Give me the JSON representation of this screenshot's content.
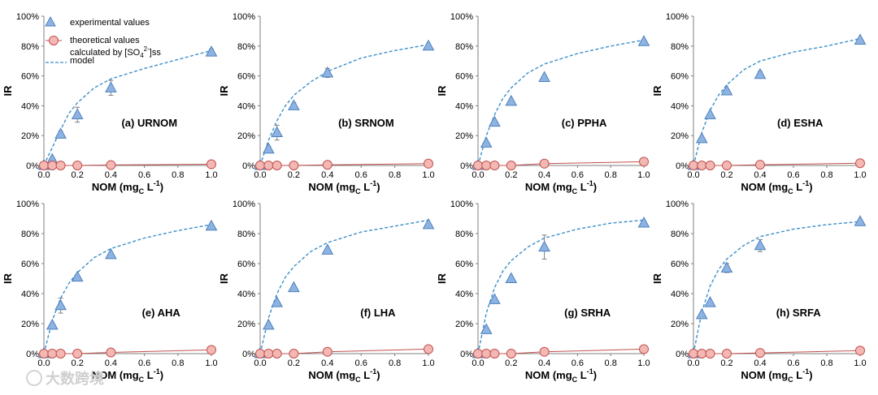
{
  "colors": {
    "triangle_fill": "#8db3e2",
    "triangle_stroke": "#4f81bd",
    "circle_fill": "#f4b8b4",
    "circle_stroke": "#c0504d",
    "model_line": "#3b8fc8",
    "theory_line": "#c0504d",
    "axis": "#7f7f7f",
    "errorbar": "#7f7f7f"
  },
  "legend": {
    "experimental": "experimental values",
    "theoretical_line1": "theoretical values",
    "theoretical_line2": "calculated by [SO",
    "theoretical_sub": "4",
    "theoretical_sup": "2-",
    "theoretical_end": "]ss",
    "model": "model"
  },
  "watermark": "大数跨境",
  "chart_data": [
    {
      "type": "scatter",
      "panel": "(a) URNOM",
      "ylabel": "IR",
      "xlabel": "NOM (mg",
      "xlabel_sub": "C",
      "xlabel_end": " L",
      "xlabel_sup": "-1",
      "xlabel_close": ")",
      "xlim": [
        0,
        1.0
      ],
      "ylim": [
        0,
        100
      ],
      "xticks": [
        "0.0",
        "0.2",
        "0.4",
        "0.6",
        "0.8",
        "1.0"
      ],
      "yticks": [
        "0%",
        "20%",
        "40%",
        "60%",
        "80%",
        "100%"
      ],
      "experimental": {
        "x": [
          0,
          0.05,
          0.1,
          0.2,
          0.4,
          1.0
        ],
        "y": [
          0,
          4,
          21,
          34,
          52,
          76
        ],
        "err": [
          0,
          0,
          2,
          5,
          5,
          2
        ]
      },
      "theoretical": {
        "x": [
          0,
          0.05,
          0.1,
          0.2,
          0.4,
          1.0
        ],
        "y": [
          0,
          0,
          0,
          0,
          0.3,
          0.8
        ]
      },
      "model": {
        "x": [
          0,
          0.05,
          0.1,
          0.15,
          0.2,
          0.3,
          0.4,
          0.6,
          0.8,
          1.0
        ],
        "y": [
          0,
          12,
          24,
          35,
          42,
          52,
          58,
          65,
          71,
          77
        ]
      }
    },
    {
      "type": "scatter",
      "panel": "(b) SRNOM",
      "ylabel": "IR",
      "xlabel": "NOM (mg",
      "xlabel_sub": "C",
      "xlabel_end": " L",
      "xlabel_sup": "-1",
      "xlabel_close": ")",
      "xlim": [
        0,
        1.0
      ],
      "ylim": [
        0,
        100
      ],
      "xticks": [
        "0.0",
        "0.2",
        "0.4",
        "0.6",
        "0.8",
        "1.0"
      ],
      "yticks": [
        "0%",
        "20%",
        "40%",
        "60%",
        "80%",
        "100%"
      ],
      "experimental": {
        "x": [
          0,
          0.05,
          0.1,
          0.2,
          0.4,
          1.0
        ],
        "y": [
          0,
          11,
          22,
          40,
          62,
          80
        ],
        "err": [
          0,
          2,
          5,
          2,
          3,
          1
        ]
      },
      "theoretical": {
        "x": [
          0,
          0.05,
          0.1,
          0.2,
          0.4,
          1.0
        ],
        "y": [
          0,
          0,
          0,
          0,
          0.4,
          1.2
        ]
      },
      "model": {
        "x": [
          0,
          0.05,
          0.1,
          0.15,
          0.2,
          0.3,
          0.4,
          0.6,
          0.8,
          1.0
        ],
        "y": [
          0,
          17,
          30,
          40,
          47,
          56,
          63,
          72,
          77,
          81
        ]
      }
    },
    {
      "type": "scatter",
      "panel": "(c) PPHA",
      "ylabel": "IR",
      "xlabel": "NOM (mg",
      "xlabel_sub": "C",
      "xlabel_end": " L",
      "xlabel_sup": "-1",
      "xlabel_close": ")",
      "xlim": [
        0,
        1.0
      ],
      "ylim": [
        0,
        100
      ],
      "xticks": [
        "0.0",
        "0.2",
        "0.4",
        "0.6",
        "0.8",
        "1.0"
      ],
      "yticks": [
        "0%",
        "20%",
        "40%",
        "60%",
        "80%",
        "100%"
      ],
      "experimental": {
        "x": [
          0,
          0.05,
          0.1,
          0.2,
          0.4,
          1.0
        ],
        "y": [
          0,
          15,
          29,
          43,
          59,
          83
        ],
        "err": [
          0,
          0,
          0,
          0,
          0,
          0
        ]
      },
      "theoretical": {
        "x": [
          0,
          0.05,
          0.1,
          0.2,
          0.4,
          1.0
        ],
        "y": [
          0,
          0,
          0,
          0,
          1.2,
          2.5
        ]
      },
      "model": {
        "x": [
          0,
          0.05,
          0.1,
          0.15,
          0.2,
          0.3,
          0.4,
          0.6,
          0.8,
          1.0
        ],
        "y": [
          0,
          20,
          34,
          45,
          52,
          62,
          68,
          75,
          80,
          84
        ]
      }
    },
    {
      "type": "scatter",
      "panel": "(d) ESHA",
      "ylabel": "IR",
      "xlabel": "NOM (mg",
      "xlabel_sub": "C",
      "xlabel_end": " L",
      "xlabel_sup": "-1",
      "xlabel_close": ")",
      "xlim": [
        0,
        1.0
      ],
      "ylim": [
        0,
        100
      ],
      "xticks": [
        "0.0",
        "0.2",
        "0.4",
        "0.6",
        "0.8",
        "1.0"
      ],
      "yticks": [
        "0%",
        "20%",
        "40%",
        "60%",
        "80%",
        "100%"
      ],
      "experimental": {
        "x": [
          0,
          0.05,
          0.1,
          0.2,
          0.4,
          1.0
        ],
        "y": [
          0,
          18,
          34,
          50,
          61,
          84
        ],
        "err": [
          0,
          0,
          0,
          0,
          2,
          0
        ]
      },
      "theoretical": {
        "x": [
          0,
          0.05,
          0.1,
          0.2,
          0.4,
          1.0
        ],
        "y": [
          0,
          0,
          0,
          0,
          0.5,
          1.5
        ]
      },
      "model": {
        "x": [
          0,
          0.05,
          0.1,
          0.15,
          0.2,
          0.3,
          0.4,
          0.6,
          0.8,
          1.0
        ],
        "y": [
          0,
          22,
          37,
          47,
          54,
          64,
          70,
          76,
          80,
          85
        ]
      }
    },
    {
      "type": "scatter",
      "panel": "(e) AHA",
      "ylabel": "IR",
      "xlabel": "NOM (mg",
      "xlabel_sub": "C",
      "xlabel_end": " L",
      "xlabel_sup": "-1",
      "xlabel_close": ")",
      "xlim": [
        0,
        1.0
      ],
      "ylim": [
        0,
        100
      ],
      "xticks": [
        "0.0",
        "0.2",
        "0.4",
        "0.6",
        "0.8",
        "1.0"
      ],
      "yticks": [
        "0%",
        "20%",
        "40%",
        "60%",
        "80%",
        "100%"
      ],
      "experimental": {
        "x": [
          0,
          0.05,
          0.1,
          0.2,
          0.4,
          1.0
        ],
        "y": [
          0,
          19,
          32,
          51,
          66,
          85
        ],
        "err": [
          0,
          0,
          5,
          0,
          0,
          0
        ]
      },
      "theoretical": {
        "x": [
          0,
          0.05,
          0.1,
          0.2,
          0.4,
          1.0
        ],
        "y": [
          0,
          0,
          0,
          0,
          0.8,
          2.5
        ]
      },
      "model": {
        "x": [
          0,
          0.05,
          0.1,
          0.15,
          0.2,
          0.3,
          0.4,
          0.6,
          0.8,
          1.0
        ],
        "y": [
          0,
          22,
          37,
          47,
          54,
          64,
          70,
          77,
          82,
          86
        ]
      }
    },
    {
      "type": "scatter",
      "panel": "(f) LHA",
      "ylabel": "IR",
      "xlabel": "NOM (mg",
      "xlabel_sub": "C",
      "xlabel_end": " L",
      "xlabel_sup": "-1",
      "xlabel_close": ")",
      "xlim": [
        0,
        1.0
      ],
      "ylim": [
        0,
        100
      ],
      "xticks": [
        "0.0",
        "0.2",
        "0.4",
        "0.6",
        "0.8",
        "1.0"
      ],
      "yticks": [
        "0%",
        "20%",
        "40%",
        "60%",
        "80%",
        "100%"
      ],
      "experimental": {
        "x": [
          0,
          0.05,
          0.1,
          0.2,
          0.4,
          1.0
        ],
        "y": [
          0,
          19,
          34,
          44,
          69,
          86
        ],
        "err": [
          0,
          0,
          0,
          0,
          0,
          0
        ]
      },
      "theoretical": {
        "x": [
          0,
          0.05,
          0.1,
          0.2,
          0.4,
          1.0
        ],
        "y": [
          0,
          0,
          0,
          0,
          1.2,
          3.0
        ]
      },
      "model": {
        "x": [
          0,
          0.05,
          0.1,
          0.15,
          0.2,
          0.3,
          0.4,
          0.6,
          0.8,
          1.0
        ],
        "y": [
          0,
          24,
          40,
          51,
          58,
          68,
          74,
          81,
          85,
          89
        ]
      }
    },
    {
      "type": "scatter",
      "panel": "(g) SRHA",
      "ylabel": "IR",
      "xlabel": "NOM (mg",
      "xlabel_sub": "C",
      "xlabel_end": " L",
      "xlabel_sup": "-1",
      "xlabel_close": ")",
      "xlim": [
        0,
        1.0
      ],
      "ylim": [
        0,
        100
      ],
      "xticks": [
        "0.0",
        "0.2",
        "0.4",
        "0.6",
        "0.8",
        "1.0"
      ],
      "yticks": [
        "0%",
        "20%",
        "40%",
        "60%",
        "80%",
        "100%"
      ],
      "experimental": {
        "x": [
          0,
          0.05,
          0.1,
          0.2,
          0.4,
          1.0
        ],
        "y": [
          0,
          16,
          36,
          50,
          71,
          87
        ],
        "err": [
          0,
          0,
          0,
          0,
          8,
          0
        ]
      },
      "theoretical": {
        "x": [
          0,
          0.05,
          0.1,
          0.2,
          0.4,
          1.0
        ],
        "y": [
          0,
          0,
          0,
          0,
          1.2,
          3.0
        ]
      },
      "model": {
        "x": [
          0,
          0.05,
          0.1,
          0.15,
          0.2,
          0.3,
          0.4,
          0.6,
          0.8,
          1.0
        ],
        "y": [
          0,
          27,
          44,
          55,
          62,
          71,
          77,
          83,
          87,
          89
        ]
      }
    },
    {
      "type": "scatter",
      "panel": "(h) SRFA",
      "ylabel": "IR",
      "xlabel": "NOM (mg",
      "xlabel_sub": "C",
      "xlabel_end": " L",
      "xlabel_sup": "-1",
      "xlabel_close": ")",
      "xlim": [
        0,
        1.0
      ],
      "ylim": [
        0,
        100
      ],
      "xticks": [
        "0.0",
        "0.2",
        "0.4",
        "0.6",
        "0.8",
        "1.0"
      ],
      "yticks": [
        "0%",
        "20%",
        "40%",
        "60%",
        "80%",
        "100%"
      ],
      "experimental": {
        "x": [
          0,
          0.05,
          0.1,
          0.2,
          0.4,
          1.0
        ],
        "y": [
          0,
          26,
          34,
          57,
          72,
          88
        ],
        "err": [
          0,
          0,
          0,
          3,
          4,
          0
        ]
      },
      "theoretical": {
        "x": [
          0,
          0.05,
          0.1,
          0.2,
          0.4,
          1.0
        ],
        "y": [
          0,
          0,
          0,
          0,
          0.5,
          2.0
        ]
      },
      "model": {
        "x": [
          0,
          0.05,
          0.1,
          0.15,
          0.2,
          0.3,
          0.4,
          0.6,
          0.8,
          1.0
        ],
        "y": [
          0,
          28,
          45,
          56,
          63,
          72,
          78,
          83,
          86,
          88
        ]
      }
    }
  ]
}
